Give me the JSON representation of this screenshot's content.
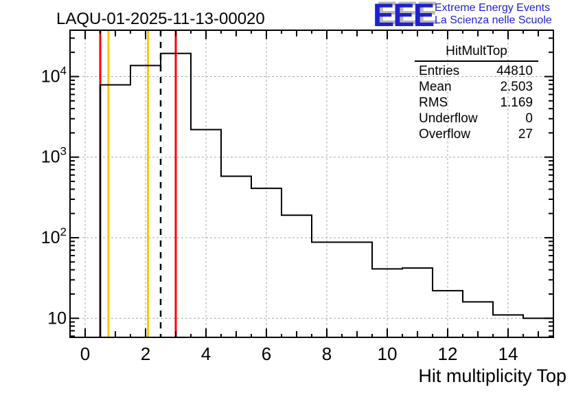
{
  "page": {
    "title": "LAQU-01-2025-11-13-00020"
  },
  "logo": {
    "acronym": "EEE",
    "line1": "Extreme Energy Events",
    "line2": "La Scienza nelle Scuole",
    "color": "#2020d0"
  },
  "stats": {
    "title": "HitMultTop",
    "rows": [
      {
        "label": "Entries",
        "value": "44810"
      },
      {
        "label": "Mean",
        "value": "2.503"
      },
      {
        "label": "RMS",
        "value": "1.169"
      },
      {
        "label": "Underflow",
        "value": "0"
      },
      {
        "label": "Overflow",
        "value": "27"
      }
    ]
  },
  "chart_data": {
    "type": "bar",
    "subtype": "step-histogram",
    "title": "LAQU-01-2025-11-13-00020",
    "xlabel": "Hit multiplicity Top",
    "ylabel": "",
    "yscale": "log",
    "grid": true,
    "grid_color": "#a8a8a8",
    "bin_centers": [
      0,
      1,
      2,
      3,
      4,
      5,
      6,
      7,
      8,
      9,
      10,
      11,
      12,
      13,
      14,
      15
    ],
    "bin_width": 1,
    "values": [
      0,
      7900,
      13700,
      19400,
      2200,
      580,
      410,
      190,
      88,
      88,
      41,
      42,
      22,
      16,
      11,
      10
    ],
    "xlim": [
      -0.5,
      15.5
    ],
    "ylim": [
      5.8,
      37600
    ],
    "xticks_major": [
      0,
      2,
      4,
      6,
      8,
      10,
      12,
      14
    ],
    "yticks_major": [
      10,
      100,
      1000,
      10000
    ],
    "marker_lines": [
      {
        "x": 0.5,
        "color": "#ff0000",
        "style": "solid",
        "name": "red-lower-threshold"
      },
      {
        "x": 0.77,
        "color": "#ffc800",
        "style": "solid",
        "name": "yellow-lower-threshold"
      },
      {
        "x": 2.08,
        "color": "#ffc800",
        "style": "solid",
        "name": "yellow-upper-threshold"
      },
      {
        "x": 2.5,
        "color": "#000000",
        "style": "dashed",
        "name": "mean-marker"
      },
      {
        "x": 3.0,
        "color": "#ff0000",
        "style": "solid",
        "name": "red-upper-threshold"
      }
    ]
  }
}
